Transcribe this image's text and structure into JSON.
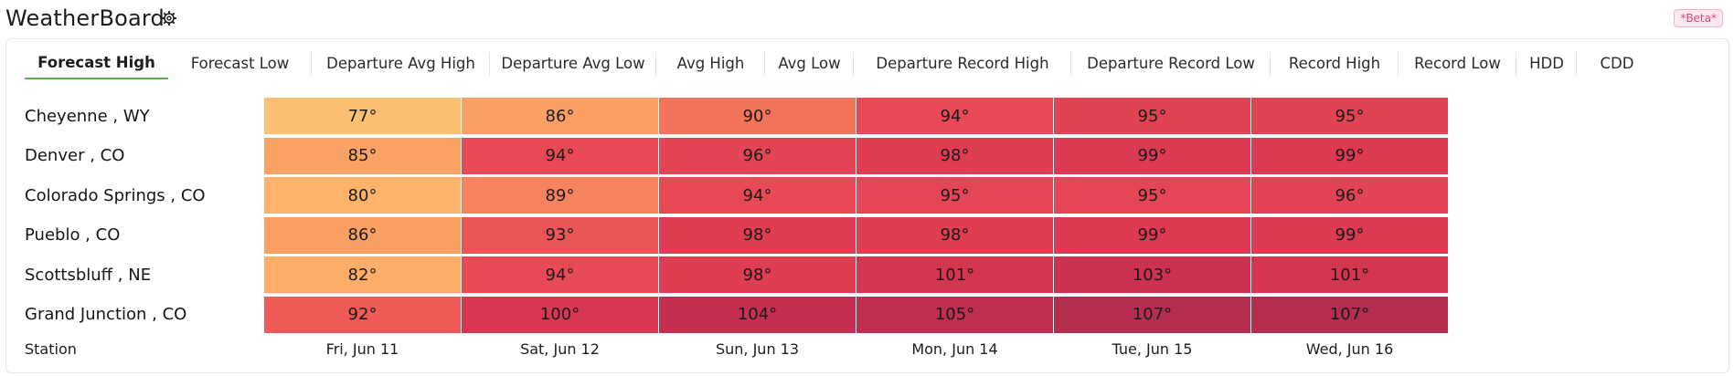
{
  "app": {
    "title": "WeatherBoard",
    "badge": "*Beta*"
  },
  "tabs": [
    {
      "label": "Forecast High",
      "active": true
    },
    {
      "label": "Forecast Low"
    },
    {
      "label": "Departure Avg High"
    },
    {
      "label": "Departure Avg Low"
    },
    {
      "label": "Avg High"
    },
    {
      "label": "Avg Low"
    },
    {
      "label": "Departure Record High"
    },
    {
      "label": "Departure Record Low"
    },
    {
      "label": "Record High"
    },
    {
      "label": "Record Low"
    },
    {
      "label": "HDD"
    },
    {
      "label": "CDD"
    }
  ],
  "table": {
    "footer_label": "Station",
    "days": [
      "Fri, Jun 11",
      "Sat, Jun 12",
      "Sun, Jun 13",
      "Mon, Jun 14",
      "Tue, Jun 15",
      "Wed, Jun 16"
    ],
    "rows": [
      {
        "station": "Cheyenne , WY",
        "values": [
          "77°",
          "86°",
          "90°",
          "94°",
          "95°",
          "95°"
        ],
        "colors": [
          "#fdc072",
          "#fba064",
          "#f3725a",
          "#e84a55",
          "#e04352",
          "#e04352"
        ]
      },
      {
        "station": "Denver , CO",
        "values": [
          "85°",
          "94°",
          "96°",
          "98°",
          "99°",
          "99°"
        ],
        "colors": [
          "#fba364",
          "#e84a55",
          "#e44555",
          "#df3d52",
          "#dc3a52",
          "#dc3a52"
        ]
      },
      {
        "station": "Colorado Springs , CO",
        "values": [
          "80°",
          "89°",
          "94°",
          "95°",
          "95°",
          "96°"
        ],
        "colors": [
          "#fdb36a",
          "#f5835e",
          "#e84a55",
          "#e54656",
          "#e54656",
          "#e24455"
        ]
      },
      {
        "station": "Pueblo , CO",
        "values": [
          "86°",
          "93°",
          "98°",
          "98°",
          "99°",
          "99°"
        ],
        "colors": [
          "#fba064",
          "#ec5557",
          "#df3d52",
          "#df3d52",
          "#dc3a52",
          "#dc3a52"
        ]
      },
      {
        "station": "Scottsbluff , NE",
        "values": [
          "82°",
          "94°",
          "98°",
          "101°",
          "103°",
          "101°"
        ],
        "colors": [
          "#fdae68",
          "#e84a55",
          "#df3d52",
          "#d4354f",
          "#cc314f",
          "#d4354f"
        ]
      },
      {
        "station": "Grand Junction , CO",
        "values": [
          "92°",
          "100°",
          "104°",
          "105°",
          "107°",
          "107°"
        ],
        "colors": [
          "#ee5a57",
          "#d83752",
          "#c42f4f",
          "#bf2e4f",
          "#b42d4f",
          "#b42d4f"
        ]
      }
    ]
  }
}
